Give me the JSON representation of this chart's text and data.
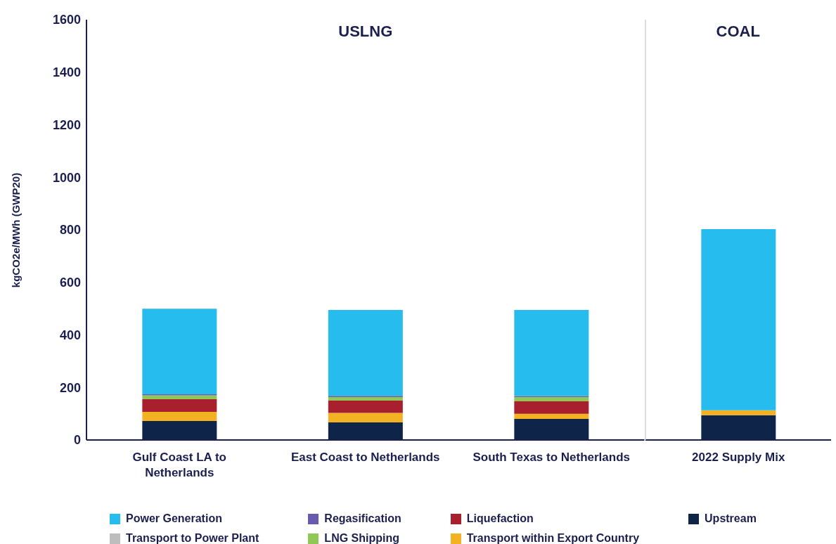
{
  "chart_data": [
    {
      "type": "bar",
      "stacked": true,
      "title": "USLNG",
      "ylabel": "kgCO2e/MWh (GWP20)",
      "categories": [
        "Gulf Coast LA to Netherlands",
        "East Coast to Netherlands",
        "South Texas to Netherlands"
      ],
      "series": [
        {
          "name": "Upstream",
          "color": "#0f2449",
          "values": [
            72,
            67,
            80
          ]
        },
        {
          "name": "Transport within Export Country",
          "color": "#f3b222",
          "values": [
            35,
            36,
            20
          ]
        },
        {
          "name": "Liquefaction",
          "color": "#a8202e",
          "values": [
            48,
            47,
            47
          ]
        },
        {
          "name": "LNG Shipping",
          "color": "#8fc856",
          "values": [
            15,
            13,
            16
          ]
        },
        {
          "name": "Regasification",
          "color": "#6a5aad",
          "values": [
            4,
            5,
            4
          ]
        },
        {
          "name": "Transport to Power Plant",
          "color": "#bdbdbd",
          "values": [
            0,
            0,
            0
          ]
        },
        {
          "name": "Power Generation",
          "color": "#27bcee",
          "values": [
            326,
            327,
            328
          ]
        }
      ],
      "ylim": [
        0,
        1600
      ],
      "yticks": [
        0,
        200,
        400,
        600,
        800,
        1000,
        1200,
        1400,
        1600
      ],
      "legend": "bottom"
    },
    {
      "type": "bar",
      "stacked": true,
      "title": "COAL",
      "categories": [
        "2022 Supply Mix"
      ],
      "series": [
        {
          "name": "Upstream",
          "color": "#0f2449",
          "values": [
            94
          ]
        },
        {
          "name": "Transport within Export Country",
          "color": "#f3b222",
          "values": [
            19
          ]
        },
        {
          "name": "Power Generation",
          "color": "#27bcee",
          "values": [
            690
          ]
        }
      ],
      "ylim": [
        0,
        1600
      ],
      "yticks": [
        0,
        200,
        400,
        600,
        800,
        1000,
        1200,
        1400,
        1600
      ],
      "tick_labels": "x"
    }
  ]
}
